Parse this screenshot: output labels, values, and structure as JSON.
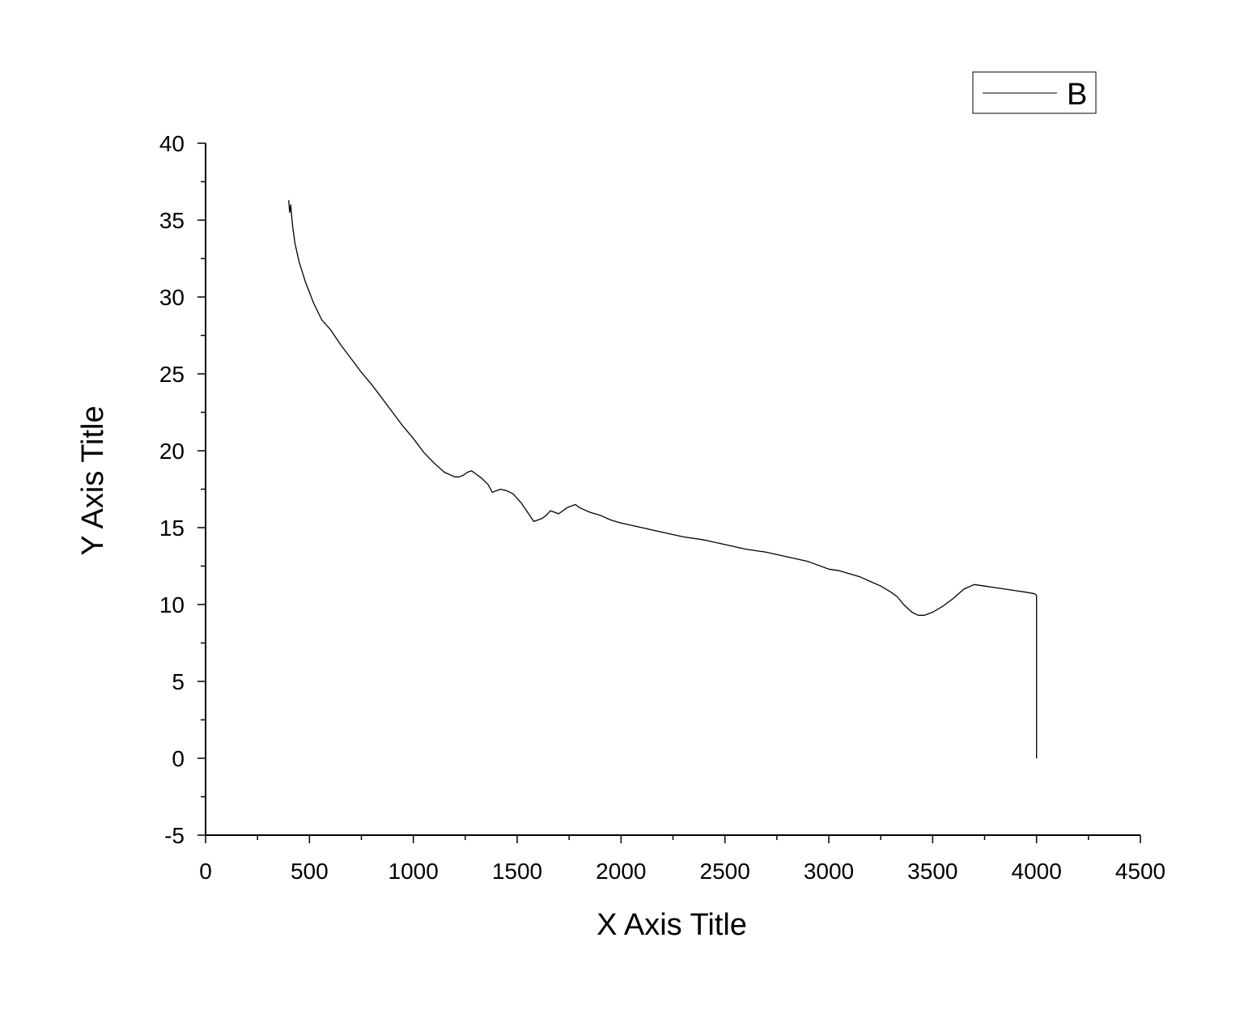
{
  "chart_data": {
    "type": "line",
    "xlabel": "X Axis Title",
    "ylabel": "Y Axis Title",
    "xlim": [
      0,
      4500
    ],
    "ylim": [
      -5,
      40
    ],
    "x_ticks": [
      "0",
      "500",
      "1000",
      "1500",
      "2000",
      "2500",
      "3000",
      "3500",
      "4000",
      "4500"
    ],
    "y_ticks": [
      "-5",
      "0",
      "5",
      "10",
      "15",
      "20",
      "25",
      "30",
      "35",
      "40"
    ],
    "grid": false,
    "legend": {
      "position": "top-right",
      "entries": [
        "B"
      ]
    },
    "series": [
      {
        "name": "B",
        "color": "#000000",
        "x": [
          400,
          405,
          410,
          415,
          420,
          430,
          450,
          480,
          520,
          560,
          600,
          650,
          700,
          750,
          800,
          850,
          900,
          950,
          1000,
          1050,
          1100,
          1150,
          1200,
          1220,
          1240,
          1260,
          1280,
          1300,
          1330,
          1360,
          1380,
          1400,
          1420,
          1450,
          1480,
          1500,
          1520,
          1540,
          1560,
          1580,
          1600,
          1620,
          1640,
          1660,
          1680,
          1700,
          1720,
          1740,
          1760,
          1780,
          1800,
          1850,
          1900,
          1950,
          2000,
          2100,
          2200,
          2300,
          2400,
          2500,
          2600,
          2700,
          2800,
          2900,
          3000,
          3050,
          3100,
          3150,
          3200,
          3250,
          3300,
          3330,
          3360,
          3400,
          3430,
          3460,
          3500,
          3550,
          3600,
          3650,
          3700,
          3750,
          3800,
          3850,
          3900,
          3950,
          3990,
          4000,
          4000
        ],
        "y": [
          36.3,
          35.5,
          36.0,
          35.2,
          34.5,
          33.5,
          32.3,
          31.0,
          29.6,
          28.5,
          27.9,
          26.9,
          26.0,
          25.1,
          24.3,
          23.4,
          22.5,
          21.6,
          20.8,
          19.9,
          19.2,
          18.6,
          18.3,
          18.3,
          18.4,
          18.6,
          18.7,
          18.5,
          18.2,
          17.8,
          17.3,
          17.4,
          17.5,
          17.4,
          17.2,
          16.9,
          16.6,
          16.2,
          15.8,
          15.4,
          15.5,
          15.6,
          15.8,
          16.1,
          16.0,
          15.9,
          16.1,
          16.3,
          16.4,
          16.5,
          16.3,
          16.0,
          15.8,
          15.5,
          15.3,
          15.0,
          14.7,
          14.4,
          14.2,
          13.9,
          13.6,
          13.4,
          13.1,
          12.8,
          12.3,
          12.2,
          12.0,
          11.8,
          11.5,
          11.2,
          10.8,
          10.5,
          10.0,
          9.5,
          9.3,
          9.3,
          9.5,
          9.9,
          10.4,
          11.0,
          11.3,
          11.2,
          11.1,
          11.0,
          10.9,
          10.8,
          10.7,
          10.6,
          0.0
        ]
      }
    ]
  }
}
